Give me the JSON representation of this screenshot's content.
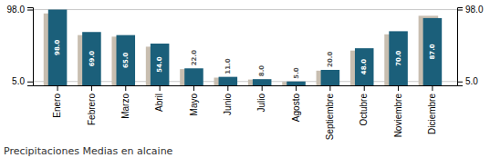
{
  "chart_data": {
    "type": "bar",
    "title": "Precipitaciones Medias en alcaine",
    "categories": [
      "Enero",
      "Febrero",
      "Marzo",
      "Abril",
      "Mayo",
      "Junio",
      "Julio",
      "Agosto",
      "Septiembre",
      "Octubre",
      "Noviembre",
      "Diciembre"
    ],
    "series": [
      {
        "color": "#c8beb0",
        "values": [
          93.0,
          65.0,
          63.0,
          50.0,
          21.0,
          10.0,
          7.5,
          4.5,
          19.0,
          45.0,
          66.0,
          90.0
        ]
      },
      {
        "color": "#1b5f7a",
        "values": [
          98.0,
          69.0,
          65.0,
          54.0,
          22.0,
          11.0,
          8.0,
          5.0,
          20.0,
          48.0,
          70.0,
          87.0
        ],
        "value_labels": [
          "98.0",
          "69.0",
          "65.0",
          "54.0",
          "22.0",
          "11.0",
          "8.0",
          "5.0",
          "20.0",
          "48.0",
          "70.0",
          "87.0"
        ]
      }
    ],
    "ylim": [
      0,
      101
    ],
    "yticks": [
      {
        "value": 5.0,
        "label": "5.0"
      },
      {
        "value": 98.0,
        "label": "98.0"
      }
    ],
    "y2lim": [
      0,
      101
    ],
    "y2ticks": [
      {
        "value": 5.0,
        "label": "5.0"
      },
      {
        "value": 98.0,
        "label": "98.0"
      }
    ],
    "grid": true,
    "data_labels": true
  }
}
